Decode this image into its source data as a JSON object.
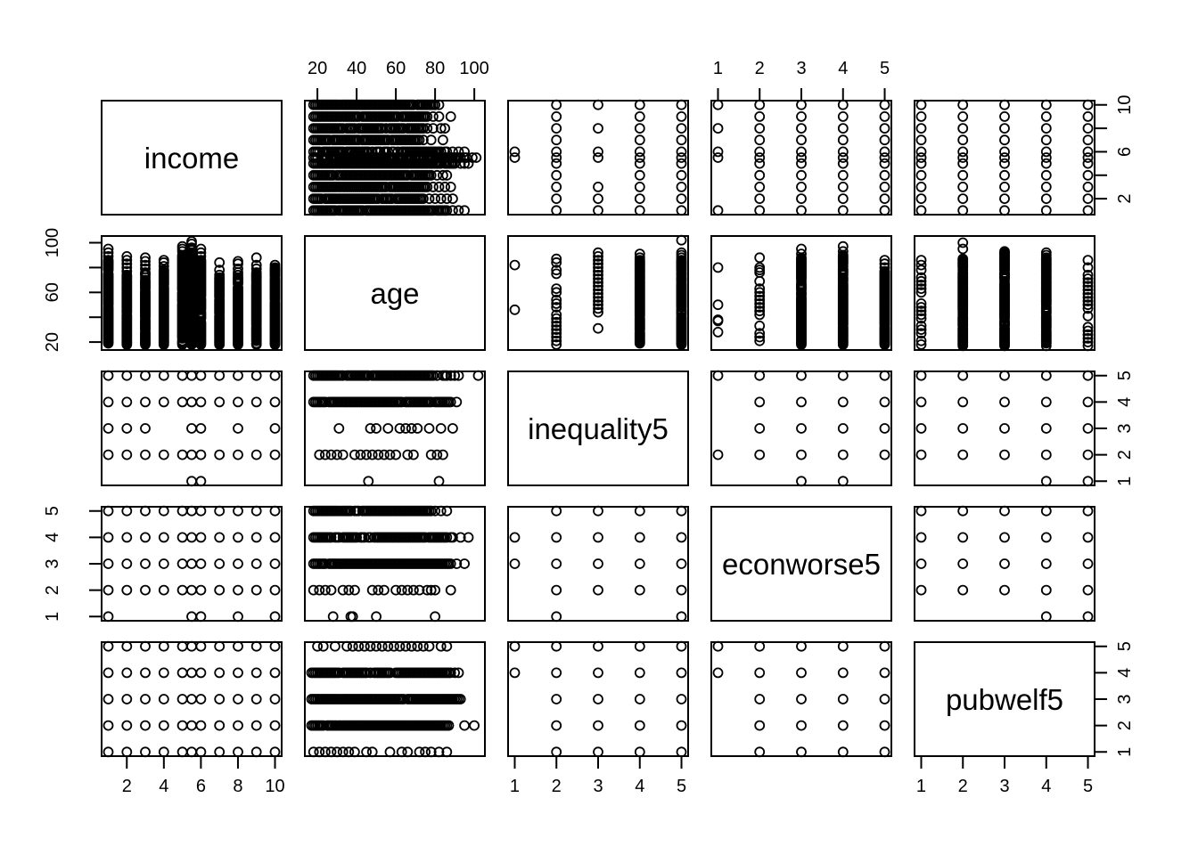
{
  "chart_data": {
    "type": "scatter",
    "subtype": "scatterplot-matrix",
    "title": "",
    "point_style": "open-circle",
    "colors": {
      "background": "#ffffff",
      "stroke": "#000000"
    },
    "diag_labels": [
      "income",
      "age",
      "inequality5",
      "econworse5",
      "pubwelf5"
    ],
    "variables": [
      {
        "name": "income",
        "range": [
          1,
          10
        ],
        "levels": [
          1,
          2,
          3,
          4,
          5,
          5.5,
          6,
          7,
          8,
          9,
          10
        ]
      },
      {
        "name": "age",
        "range": [
          17,
          102
        ],
        "levels": null
      },
      {
        "name": "inequality5",
        "range": [
          1,
          5
        ],
        "levels": [
          1,
          2,
          3,
          4,
          5
        ]
      },
      {
        "name": "econworse5",
        "range": [
          1,
          5
        ],
        "levels": [
          1,
          2,
          3,
          4,
          5
        ]
      },
      {
        "name": "pubwelf5",
        "range": [
          1,
          5
        ],
        "levels": [
          1,
          2,
          3,
          4,
          5
        ]
      }
    ],
    "axes": [
      {
        "side": "top",
        "col": 1,
        "var": "age",
        "ticks": [
          20,
          40,
          60,
          80,
          100
        ],
        "labels": [
          "20",
          "40",
          "60",
          "80",
          "100"
        ]
      },
      {
        "side": "top",
        "col": 3,
        "var": "econworse5",
        "ticks": [
          1,
          2,
          3,
          4,
          5
        ],
        "labels": [
          "1",
          "2",
          "3",
          "4",
          "5"
        ]
      },
      {
        "side": "right",
        "row": 0,
        "var": "income",
        "ticks": [
          2,
          4,
          6,
          8,
          10
        ],
        "labels": [
          "2",
          "",
          "6",
          "",
          "10"
        ]
      },
      {
        "side": "right",
        "row": 2,
        "var": "inequality5",
        "ticks": [
          1,
          2,
          3,
          4,
          5
        ],
        "labels": [
          "1",
          "2",
          "3",
          "4",
          "5"
        ]
      },
      {
        "side": "right",
        "row": 4,
        "var": "pubwelf5",
        "ticks": [
          1,
          2,
          3,
          4,
          5
        ],
        "labels": [
          "1",
          "2",
          "3",
          "4",
          "5"
        ]
      },
      {
        "side": "left",
        "row": 1,
        "var": "age",
        "ticks": [
          20,
          40,
          60,
          80,
          100
        ],
        "labels": [
          "20",
          "",
          "60",
          "",
          "100"
        ]
      },
      {
        "side": "left",
        "row": 3,
        "var": "econworse5",
        "ticks": [
          1,
          2,
          3,
          4,
          5
        ],
        "labels": [
          "1",
          "2",
          "3",
          "4",
          "5"
        ]
      },
      {
        "side": "bottom",
        "col": 0,
        "var": "income",
        "ticks": [
          2,
          4,
          6,
          8,
          10
        ],
        "labels": [
          "2",
          "4",
          "6",
          "8",
          "10"
        ]
      },
      {
        "side": "bottom",
        "col": 2,
        "var": "inequality5",
        "ticks": [
          1,
          2,
          3,
          4,
          5
        ],
        "labels": [
          "1",
          "2",
          "3",
          "4",
          "5"
        ]
      },
      {
        "side": "bottom",
        "col": 4,
        "var": "pubwelf5",
        "ticks": [
          1,
          2,
          3,
          4,
          5
        ],
        "labels": [
          "1",
          "2",
          "3",
          "4",
          "5"
        ]
      }
    ],
    "pairs": [
      {
        "a": "income",
        "b": "age",
        "kind": "bands",
        "band_var": "income",
        "value_var": "age",
        "bands": [
          {
            "level": 1,
            "density": "solid",
            "dense": [
              18,
              86
            ],
            "outliers": [
              89,
              92,
              95
            ]
          },
          {
            "level": 2,
            "density": "solid",
            "dense": [
              18,
              74
            ],
            "outliers": [
              77,
              80,
              83,
              86,
              89
            ]
          },
          {
            "level": 3,
            "density": "solid",
            "dense": [
              18,
              76
            ],
            "outliers": [
              79,
              82,
              85,
              88
            ]
          },
          {
            "level": 4,
            "density": "solid",
            "dense": [
              18,
              78
            ],
            "outliers": [
              81,
              84,
              86
            ]
          },
          {
            "level": 5,
            "density": "solid",
            "dense": [
              18,
              90
            ],
            "outliers": [
              93,
              95,
              97
            ]
          },
          {
            "level": 5.5,
            "density": "solid",
            "dense": [
              18,
              96
            ],
            "outliers": [
              99,
              101
            ]
          },
          {
            "level": 6,
            "density": "solid",
            "dense": [
              18,
              86
            ],
            "outliers": [
              89,
              92,
              95
            ]
          },
          {
            "level": 7,
            "density": "solid",
            "dense": [
              18,
              72
            ],
            "outliers": [
              74,
              78,
              84
            ]
          },
          {
            "level": 8,
            "density": "solid",
            "dense": [
              18,
              74
            ],
            "outliers": [
              76,
              79,
              83,
              85
            ]
          },
          {
            "level": 9,
            "density": "solid",
            "dense": [
              18,
              76
            ],
            "outliers": [
              79,
              82,
              88
            ]
          },
          {
            "level": 10,
            "density": "solid",
            "dense": [
              18,
              80
            ],
            "outliers": [
              82
            ]
          }
        ]
      },
      {
        "a": "income",
        "b": "inequality5",
        "kind": "grid",
        "rows": [
          {
            "level": 1,
            "values": [
              5.5,
              6
            ]
          },
          {
            "level": 2,
            "values": "all"
          },
          {
            "level": 3,
            "values": [
              1,
              2,
              3,
              5.5,
              6,
              8,
              10
            ]
          },
          {
            "level": 4,
            "values": "all"
          },
          {
            "level": 5,
            "values": "all"
          }
        ]
      },
      {
        "a": "income",
        "b": "econworse5",
        "kind": "grid",
        "rows": [
          {
            "level": 1,
            "values": [
              1,
              5.5,
              6,
              8,
              10
            ]
          },
          {
            "level": 2,
            "values": "all"
          },
          {
            "level": 3,
            "values": "all"
          },
          {
            "level": 4,
            "values": "all"
          },
          {
            "level": 5,
            "values": "all"
          }
        ]
      },
      {
        "a": "income",
        "b": "pubwelf5",
        "kind": "grid",
        "rows": [
          {
            "level": 1,
            "values": "all"
          },
          {
            "level": 2,
            "values": "all"
          },
          {
            "level": 3,
            "values": "all"
          },
          {
            "level": 4,
            "values": "all"
          },
          {
            "level": 5,
            "values": "all"
          }
        ]
      },
      {
        "a": "age",
        "b": "inequality5",
        "kind": "bands",
        "band_var": "inequality5",
        "value_var": "age",
        "bands": [
          {
            "level": 1,
            "density": "sparse",
            "dense": null,
            "outliers": [
              46,
              82
            ]
          },
          {
            "level": 2,
            "density": "chain",
            "dense": [
              18,
              88
            ],
            "outliers": []
          },
          {
            "level": 3,
            "density": "chain",
            "dense": [
              44,
              93
            ],
            "outliers": [
              31
            ]
          },
          {
            "level": 4,
            "density": "solid",
            "dense": [
              18,
              88
            ],
            "outliers": [
              91
            ]
          },
          {
            "level": 5,
            "density": "solid",
            "dense": [
              18,
              86
            ],
            "outliers": [
              88,
              90,
              92,
              102
            ]
          }
        ]
      },
      {
        "a": "age",
        "b": "econworse5",
        "kind": "bands",
        "band_var": "econworse5",
        "value_var": "age",
        "bands": [
          {
            "level": 1,
            "density": "sparse",
            "dense": null,
            "outliers": [
              28,
              37,
              38,
              50,
              80
            ]
          },
          {
            "level": 2,
            "density": "chain",
            "dense": [
              18,
              73
            ],
            "outliers": [
              76,
              78,
              80,
              88
            ]
          },
          {
            "level": 3,
            "density": "solid",
            "dense": [
              18,
              88
            ],
            "outliers": [
              91,
              95
            ]
          },
          {
            "level": 4,
            "density": "solid",
            "dense": [
              18,
              90
            ],
            "outliers": [
              93,
              97
            ]
          },
          {
            "level": 5,
            "density": "solid",
            "dense": [
              18,
              78
            ],
            "outliers": [
              80,
              83,
              86
            ]
          }
        ]
      },
      {
        "a": "age",
        "b": "pubwelf5",
        "kind": "bands",
        "band_var": "pubwelf5",
        "value_var": "age",
        "bands": [
          {
            "level": 1,
            "density": "chain",
            "dense": [
              18,
              78
            ],
            "outliers": [
              82,
              86
            ]
          },
          {
            "level": 2,
            "density": "solid",
            "dense": [
              17,
              87
            ],
            "outliers": [
              95,
              100
            ]
          },
          {
            "level": 3,
            "density": "solid",
            "dense": [
              17,
              93
            ],
            "outliers": []
          },
          {
            "level": 4,
            "density": "solid",
            "dense": [
              17,
              88
            ],
            "outliers": [
              90,
              92
            ]
          },
          {
            "level": 5,
            "density": "chain",
            "dense": [
              17,
              86
            ],
            "outliers": []
          }
        ]
      },
      {
        "a": "inequality5",
        "b": "econworse5",
        "kind": "grid",
        "rows": [
          {
            "level": 1,
            "values": [
              2,
              5
            ]
          },
          {
            "level": 2,
            "values": [
              2,
              3,
              4,
              5
            ]
          },
          {
            "level": 3,
            "values": "all"
          },
          {
            "level": 4,
            "values": "all"
          },
          {
            "level": 5,
            "values": [
              2,
              3,
              4,
              5
            ]
          }
        ]
      },
      {
        "a": "inequality5",
        "b": "pubwelf5",
        "kind": "grid",
        "rows": [
          {
            "level": 1,
            "values": [
              2,
              3,
              4,
              5
            ]
          },
          {
            "level": 2,
            "values": [
              2,
              3,
              4,
              5
            ]
          },
          {
            "level": 3,
            "values": [
              2,
              3,
              4,
              5
            ]
          },
          {
            "level": 4,
            "values": "all"
          },
          {
            "level": 5,
            "values": "all"
          }
        ]
      },
      {
        "a": "econworse5",
        "b": "pubwelf5",
        "kind": "grid",
        "rows": [
          {
            "level": 1,
            "values": [
              2,
              3,
              4,
              5
            ]
          },
          {
            "level": 2,
            "values": [
              2,
              3,
              4,
              5
            ]
          },
          {
            "level": 3,
            "values": [
              2,
              3,
              4,
              5
            ]
          },
          {
            "level": 4,
            "values": "all"
          },
          {
            "level": 5,
            "values": "all"
          }
        ]
      }
    ]
  }
}
